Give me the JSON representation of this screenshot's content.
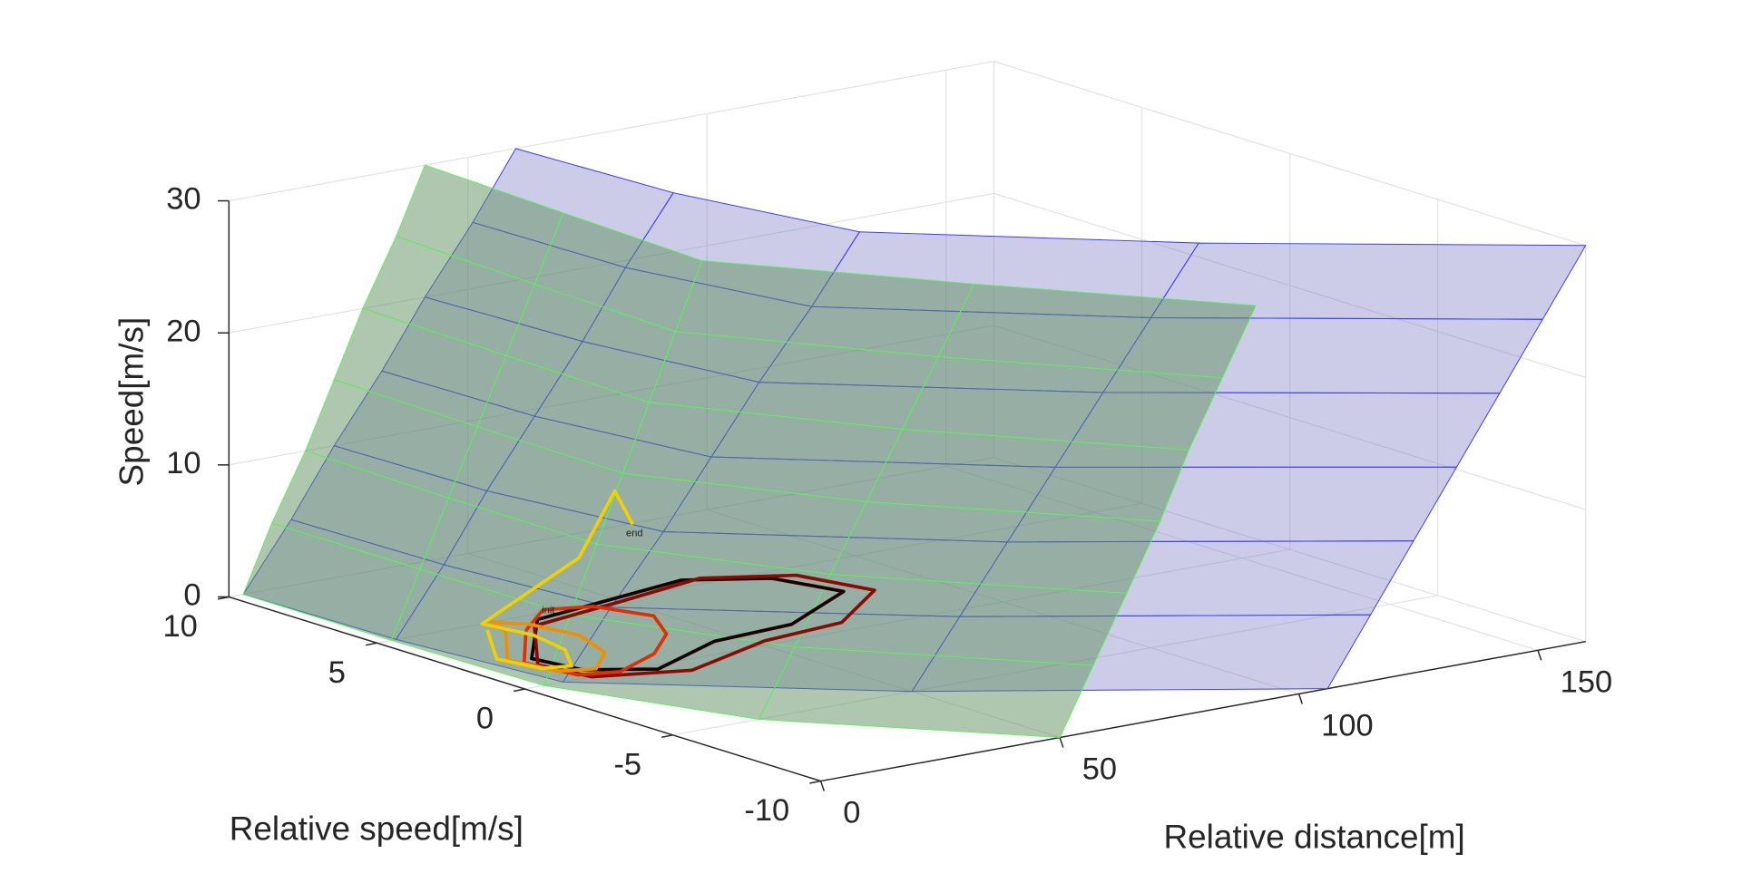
{
  "chart_data": {
    "type": "surface3d",
    "xlabel": "Relative distance[m]",
    "ylabel": "Relative speed[m/s]",
    "zlabel": "Speed[m/s]",
    "xlim": [
      0,
      160
    ],
    "xticks": [
      0,
      50,
      100,
      150
    ],
    "ylim": [
      -10,
      10
    ],
    "yticks": [
      -10,
      -5,
      0,
      5,
      10
    ],
    "zlim": [
      0,
      30
    ],
    "zticks": [
      0,
      10,
      20,
      30
    ],
    "grid": true,
    "surfaces": [
      {
        "color": "#8080c8",
        "edgecolor": "#3a3aff",
        "opacity": 0.4,
        "y": [
          -10,
          -5,
          0,
          5,
          10
        ],
        "z": [
          0,
          5,
          10,
          15,
          20,
          25,
          30
        ],
        "x": [
          [
            106,
            115,
            124,
            133,
            142,
            151,
            160
          ],
          [
            50,
            60,
            70,
            80,
            90,
            100,
            110
          ],
          [
            8,
            18,
            29,
            39,
            49,
            60,
            70
          ],
          [
            4,
            14,
            23,
            33,
            43,
            52,
            62
          ],
          [
            3,
            13,
            22,
            32,
            41,
            51,
            60
          ]
        ]
      },
      {
        "color": "#5f8f5f",
        "edgecolor": "#5cf05c",
        "opacity": 0.5,
        "y": [
          -10,
          -5,
          0,
          5,
          10
        ],
        "z": [
          0,
          5,
          10,
          15,
          20,
          25,
          30
        ],
        "x": [
          [
            50,
            57,
            64,
            71,
            77,
            84,
            91
          ],
          [
            18,
            25.5,
            33,
            40.5,
            48,
            55.5,
            63
          ],
          [
            4,
            9.5,
            15,
            20.5,
            26,
            31.5,
            37
          ],
          [
            3,
            9,
            15,
            21,
            27,
            33,
            39
          ],
          [
            3,
            9,
            16,
            22,
            28,
            35,
            41
          ]
        ]
      }
    ],
    "series": [
      {
        "color": "#1a0000",
        "x": [
          31.1,
          13.8,
          15.7,
          26.0,
          45.2,
          62.6,
          83.4,
          79.5,
          66.8,
          47.0,
          31.1
        ],
        "y": [
          4.6,
          2.0,
          0.6,
          -0.3,
          0.9,
          1.1,
          2.7,
          4.5,
          5.5,
          5.0,
          4.6
        ],
        "z": [
          0,
          0,
          0,
          0,
          0,
          0,
          0,
          0,
          0,
          0,
          0
        ]
      },
      {
        "color": "#8b0a00",
        "x": [
          28,
          12,
          14,
          30,
          52,
          70,
          88,
          84,
          70,
          50,
          28
        ],
        "y": [
          4.2,
          1.5,
          0,
          -0.8,
          0.3,
          0.6,
          2.4,
          4.4,
          5.4,
          4.8,
          4.2
        ],
        "z": [
          0,
          0,
          0,
          0,
          0,
          0,
          0,
          0,
          0,
          0,
          0
        ]
      },
      {
        "color": "#e03000",
        "x": [
          25,
          11,
          13,
          20,
          32,
          42,
          48,
          44,
          36,
          25
        ],
        "y": [
          4.0,
          1.8,
          0.3,
          0,
          0.8,
          2.0,
          3.4,
          4.8,
          5.2,
          4.0
        ],
        "z": [
          0,
          0,
          0,
          0,
          0,
          0,
          0,
          0,
          0,
          0
        ]
      },
      {
        "color": "#f09000",
        "x": [
          22,
          10,
          12,
          18,
          26,
          30,
          28,
          24,
          22
        ],
        "y": [
          4.2,
          2.2,
          0.8,
          0.5,
          1.5,
          3,
          4.4,
          5,
          4.2
        ],
        "z": [
          0,
          0,
          0,
          0,
          0,
          0,
          0,
          0,
          0
        ]
      },
      {
        "color": "#f0d000",
        "x": [
          20,
          9,
          11,
          16,
          22,
          24,
          22,
          46,
          51,
          56
        ],
        "y": [
          4.5,
          2.4,
          1.2,
          1.0,
          2.2,
          3.6,
          5.0,
          5.6,
          5.2,
          5.4
        ],
        "z": [
          0,
          0,
          0,
          0,
          0,
          0,
          0,
          3,
          8,
          5
        ]
      }
    ],
    "start_label": "init",
    "end_label": "end"
  }
}
